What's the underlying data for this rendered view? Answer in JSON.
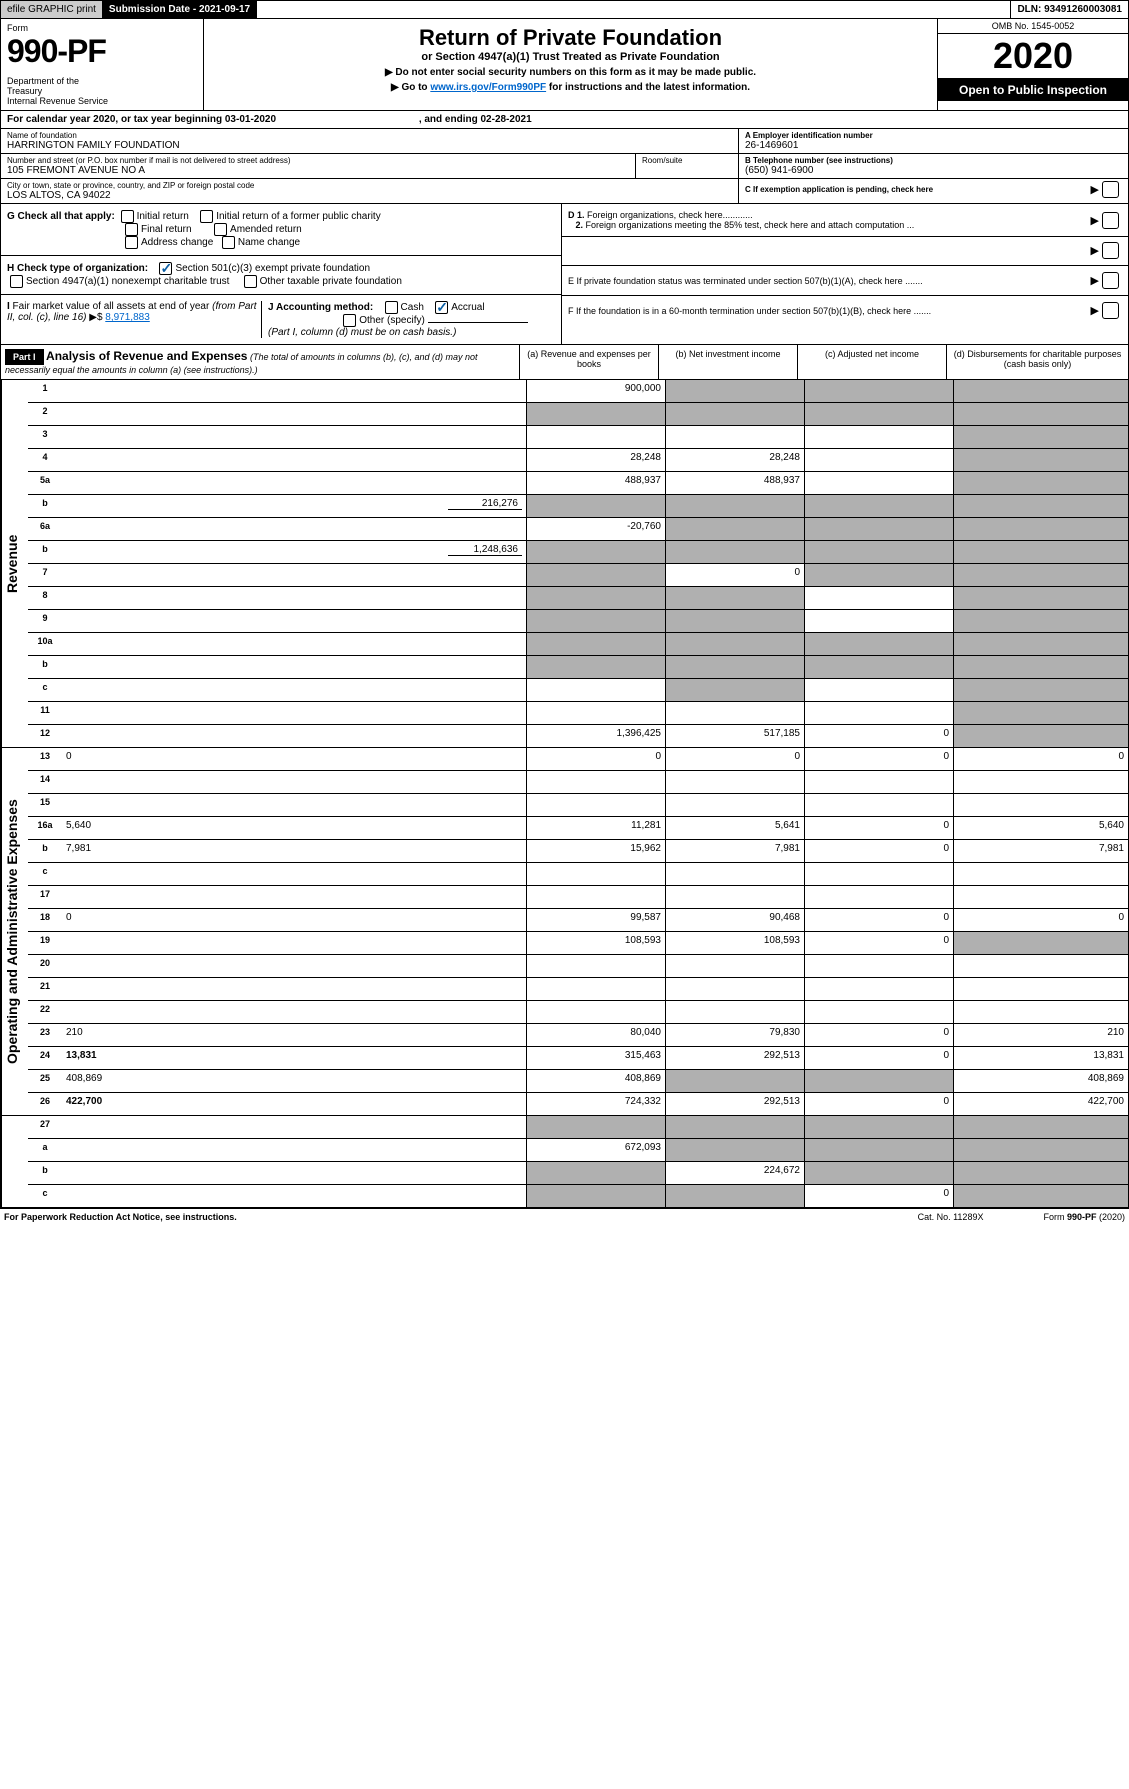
{
  "topbar": {
    "efile": "efile GRAPHIC print",
    "subdate_label": "Submission Date - ",
    "subdate": "2021-09-17",
    "dln_label": "DLN: ",
    "dln": "93491260003081"
  },
  "header": {
    "form_label": "Form",
    "form_number": "990-PF",
    "dept": "Department of the Treasury\nInternal Revenue Service",
    "title": "Return of Private Foundation",
    "subtitle": "or Section 4947(a)(1) Trust Treated as Private Foundation",
    "note1": "▶ Do not enter social security numbers on this form as it may be made public.",
    "note2_pre": "▶ Go to ",
    "note2_link": "www.irs.gov/Form990PF",
    "note2_post": " for instructions and the latest information.",
    "omb": "OMB No. 1545-0052",
    "year": "2020",
    "open": "Open to Public Inspection"
  },
  "calendar": {
    "pre": "For calendar year 2020, or tax year beginning ",
    "begin": "03-01-2020",
    "mid": " , and ending ",
    "end": "02-28-2021"
  },
  "entity": {
    "name_label": "Name of foundation",
    "name": "HARRINGTON FAMILY FOUNDATION",
    "addr_label": "Number and street (or P.O. box number if mail is not delivered to street address)",
    "addr": "105 FREMONT AVENUE NO A",
    "room_label": "Room/suite",
    "room": "",
    "city_label": "City or town, state or province, country, and ZIP or foreign postal code",
    "city": "LOS ALTOS, CA  94022",
    "a_label": "A Employer identification number",
    "a_val": "26-1469601",
    "b_label": "B Telephone number (see instructions)",
    "b_val": "(650) 941-6900",
    "c_label": "C If exemption application is pending, check here"
  },
  "checks": {
    "g_label": "G Check all that apply:",
    "g_opts": [
      "Initial return",
      "Initial return of a former public charity",
      "Final return",
      "Amended return",
      "Address change",
      "Name change"
    ],
    "h_label": "H Check type of organization:",
    "h1": "Section 501(c)(3) exempt private foundation",
    "h2": "Section 4947(a)(1) nonexempt charitable trust",
    "h3": "Other taxable private foundation",
    "i_label": "I Fair market value of all assets at end of year (from Part II, col. (c), line 16) ▶$ ",
    "i_val": "8,971,883",
    "j_label": "J Accounting method:",
    "j_cash": "Cash",
    "j_accrual": "Accrual",
    "j_other": "Other (specify)",
    "j_note": "(Part I, column (d) must be on cash basis.)",
    "d1": "D 1. Foreign organizations, check here............",
    "d2": "2. Foreign organizations meeting the 85% test, check here and attach computation ...",
    "e": "E  If private foundation status was terminated under section 507(b)(1)(A), check here .......",
    "f": "F  If the foundation is in a 60-month termination under section 507(b)(1)(B), check here .......",
    "arrow": "▶"
  },
  "part1": {
    "label": "Part I",
    "desc_title": "Analysis of Revenue and Expenses",
    "desc_note": " (The total of amounts in columns (b), (c), and (d) may not necessarily equal the amounts in column (a) (see instructions).)",
    "col_a": "(a)  Revenue and expenses per books",
    "col_b": "(b)  Net investment income",
    "col_c": "(c)  Adjusted net income",
    "col_d": "(d)  Disbursements for charitable purposes (cash basis only)"
  },
  "side": {
    "revenue": "Revenue",
    "expenses": "Operating and Administrative Expenses"
  },
  "rows": {
    "r1": {
      "n": "1",
      "d": "",
      "a": "900,000",
      "b": "",
      "c": "",
      "sb": true,
      "sc": true,
      "sd": true
    },
    "r2": {
      "n": "2",
      "d": "",
      "a": "",
      "b": "",
      "c": "",
      "sa": true,
      "sb": true,
      "sc": true,
      "sd": true
    },
    "r3": {
      "n": "3",
      "d": "",
      "a": "",
      "b": "",
      "c": "",
      "sd": true
    },
    "r4": {
      "n": "4",
      "d": "",
      "a": "28,248",
      "b": "28,248",
      "c": "",
      "sd": true
    },
    "r5a": {
      "n": "5a",
      "d": "",
      "a": "488,937",
      "b": "488,937",
      "c": "",
      "sd": true
    },
    "r5b": {
      "n": "b",
      "d": "",
      "inline": "216,276",
      "a": "",
      "b": "",
      "c": "",
      "sa": true,
      "sb": true,
      "sc": true,
      "sd": true
    },
    "r6a": {
      "n": "6a",
      "d": "",
      "a": "-20,760",
      "b": "",
      "c": "",
      "sb": true,
      "sc": true,
      "sd": true
    },
    "r6b": {
      "n": "b",
      "d": "",
      "inline": "1,248,636",
      "a": "",
      "b": "",
      "c": "",
      "sa": true,
      "sb": true,
      "sc": true,
      "sd": true
    },
    "r7": {
      "n": "7",
      "d": "",
      "a": "",
      "b": "0",
      "c": "",
      "sa": true,
      "sc": true,
      "sd": true
    },
    "r8": {
      "n": "8",
      "d": "",
      "a": "",
      "b": "",
      "c": "",
      "sa": true,
      "sb": true,
      "sd": true
    },
    "r9": {
      "n": "9",
      "d": "",
      "a": "",
      "b": "",
      "c": "",
      "sa": true,
      "sb": true,
      "sd": true
    },
    "r10a": {
      "n": "10a",
      "d": "",
      "a": "",
      "b": "",
      "c": "",
      "sa": true,
      "sb": true,
      "sc": true,
      "sd": true
    },
    "r10b": {
      "n": "b",
      "d": "",
      "a": "",
      "b": "",
      "c": "",
      "sa": true,
      "sb": true,
      "sc": true,
      "sd": true
    },
    "r10c": {
      "n": "c",
      "d": "",
      "a": "",
      "b": "",
      "c": "",
      "sb": true,
      "sd": true
    },
    "r11": {
      "n": "11",
      "d": "",
      "a": "",
      "b": "",
      "c": "",
      "sd": true
    },
    "r12": {
      "n": "12",
      "d": "",
      "a": "1,396,425",
      "b": "517,185",
      "c": "0",
      "bold": true,
      "sd": true
    },
    "r13": {
      "n": "13",
      "d": "0",
      "a": "0",
      "b": "0",
      "c": "0"
    },
    "r14": {
      "n": "14",
      "d": "",
      "a": "",
      "b": "",
      "c": ""
    },
    "r15": {
      "n": "15",
      "d": "",
      "a": "",
      "b": "",
      "c": ""
    },
    "r16a": {
      "n": "16a",
      "d": "5,640",
      "a": "11,281",
      "b": "5,641",
      "c": "0"
    },
    "r16b": {
      "n": "b",
      "d": "7,981",
      "a": "15,962",
      "b": "7,981",
      "c": "0"
    },
    "r16c": {
      "n": "c",
      "d": "",
      "a": "",
      "b": "",
      "c": ""
    },
    "r17": {
      "n": "17",
      "d": "",
      "a": "",
      "b": "",
      "c": ""
    },
    "r18": {
      "n": "18",
      "d": "0",
      "a": "99,587",
      "b": "90,468",
      "c": "0"
    },
    "r19": {
      "n": "19",
      "d": "",
      "a": "108,593",
      "b": "108,593",
      "c": "0",
      "sd": true
    },
    "r20": {
      "n": "20",
      "d": "",
      "a": "",
      "b": "",
      "c": ""
    },
    "r21": {
      "n": "21",
      "d": "",
      "a": "",
      "b": "",
      "c": ""
    },
    "r22": {
      "n": "22",
      "d": "",
      "a": "",
      "b": "",
      "c": ""
    },
    "r23": {
      "n": "23",
      "d": "210",
      "a": "80,040",
      "b": "79,830",
      "c": "0"
    },
    "r24": {
      "n": "24",
      "d": "13,831",
      "a": "315,463",
      "b": "292,513",
      "c": "0",
      "bold": true
    },
    "r25": {
      "n": "25",
      "d": "408,869",
      "a": "408,869",
      "b": "",
      "c": "",
      "sb": true,
      "sc": true
    },
    "r26": {
      "n": "26",
      "d": "422,700",
      "a": "724,332",
      "b": "292,513",
      "c": "0",
      "bold": true
    },
    "r27": {
      "n": "27",
      "d": "",
      "a": "",
      "b": "",
      "c": "",
      "sa": true,
      "sb": true,
      "sc": true,
      "sd": true
    },
    "r27a": {
      "n": "a",
      "d": "",
      "a": "672,093",
      "b": "",
      "c": "",
      "bold": true,
      "sb": true,
      "sc": true,
      "sd": true
    },
    "r27b": {
      "n": "b",
      "d": "",
      "a": "",
      "b": "224,672",
      "c": "",
      "bold": true,
      "sa": true,
      "sc": true,
      "sd": true
    },
    "r27c": {
      "n": "c",
      "d": "",
      "a": "",
      "b": "",
      "c": "0",
      "bold": true,
      "sa": true,
      "sb": true,
      "sd": true
    }
  },
  "footer": {
    "left": "For Paperwork Reduction Act Notice, see instructions.",
    "mid": "Cat. No. 11289X",
    "right": "Form 990-PF (2020)"
  }
}
